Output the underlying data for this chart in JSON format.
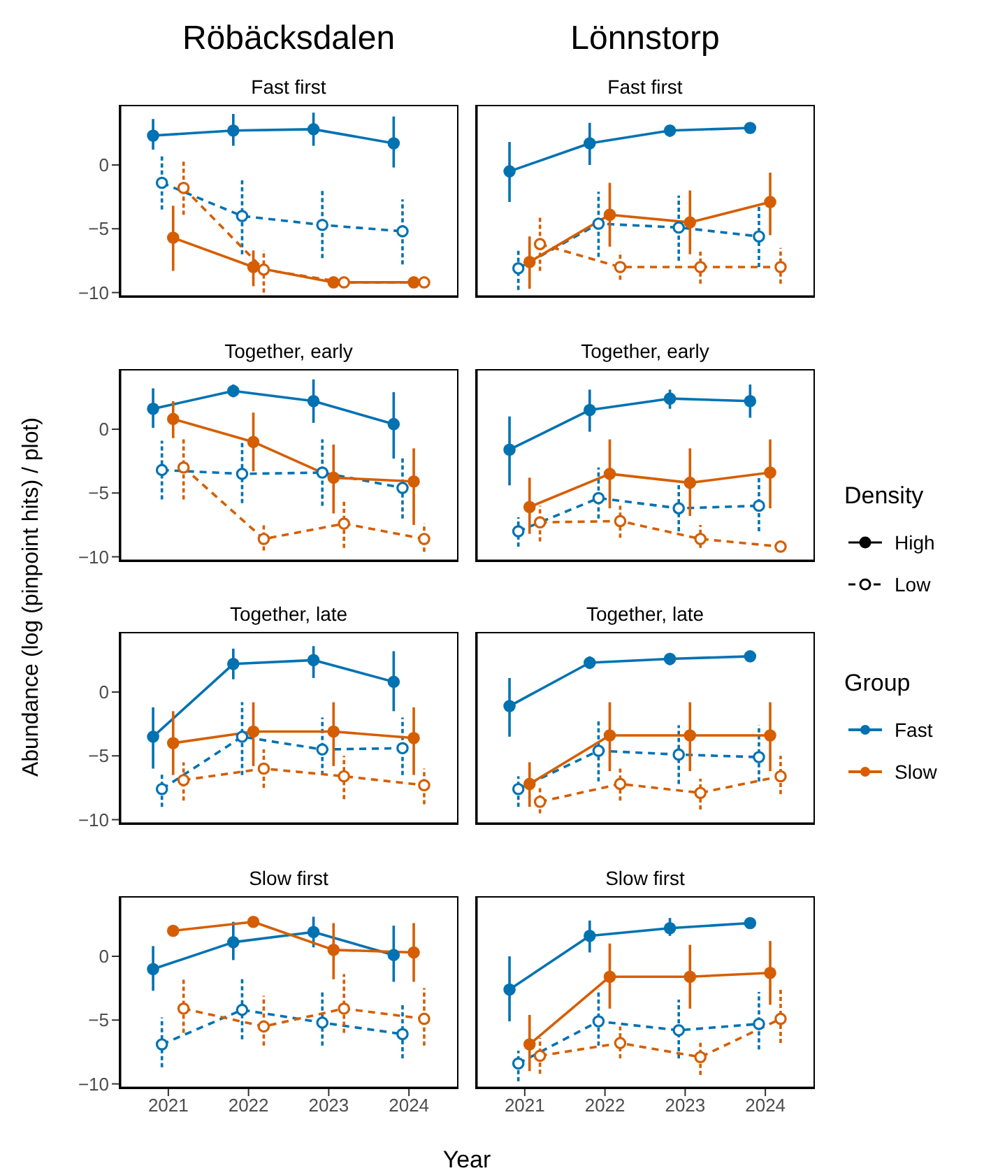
{
  "chart_data": [
    {
      "type": "line",
      "title": "Röbäcksdalen",
      "subtitle": "Fast first",
      "ylabel": "Abundance (log (pinpoint hits) / plot)",
      "legend": "right",
      "legend_title": "Group",
      "xlim": [
        2020.4,
        2024.6
      ],
      "ylim": [
        -10.3,
        4.6
      ],
      "yticks": [
        {
          "value": -10,
          "label": "−10"
        },
        {
          "value": -5,
          "label": "−5"
        },
        {
          "value": 0,
          "label": "0"
        }
      ],
      "tick_labels": "y",
      "marker": "circle",
      "series": [
        {
          "name": "Fast",
          "color": "#0072b2",
          "line_style": "solid",
          "x": [
            2020.81,
            2021.81,
            2022.81,
            2023.81
          ],
          "values": [
            2.3,
            2.7,
            2.8,
            1.7
          ],
          "errors": [
            [
              1.2,
              3.6
            ],
            [
              1.5,
              4.0
            ],
            [
              1.5,
              4.1
            ],
            [
              -0.2,
              3.8
            ]
          ]
        },
        {
          "color": "#0072b2",
          "line_style": "dashed",
          "x": [
            2020.92,
            2021.92,
            2022.92,
            2023.92
          ],
          "values": [
            -1.4,
            -4.0,
            -4.7,
            -5.2
          ],
          "errors": [
            [
              -3.5,
              0.8
            ],
            [
              -7.0,
              -1.2
            ],
            [
              -7.3,
              -2.0
            ],
            [
              -7.8,
              -2.7
            ]
          ]
        },
        {
          "name": "Slow",
          "color": "#d55e00",
          "line_style": "solid",
          "x": [
            2021.06,
            2022.06,
            2023.06,
            2024.06
          ],
          "values": [
            -5.7,
            -8.0,
            -9.2,
            -9.2
          ],
          "errors": [
            [
              -8.3,
              -3.2
            ],
            [
              -9.5,
              -6.7
            ],
            null,
            null
          ]
        },
        {
          "color": "#d55e00",
          "line_style": "dashed",
          "x": [
            2021.19,
            2022.19,
            2023.19,
            2024.19
          ],
          "values": [
            -1.8,
            -8.2,
            -9.2,
            -9.2
          ],
          "errors": [
            [
              -3.9,
              0.4
            ],
            [
              -10.0,
              -6.7
            ],
            null,
            null
          ]
        }
      ]
    },
    {
      "type": "line",
      "title": "Lönnstorp",
      "subtitle": "Fast first",
      "xlim": [
        2020.4,
        2024.6
      ],
      "ylim": [
        -10.3,
        4.6
      ],
      "tick_labels": false,
      "marker": "circle",
      "series": [
        {
          "color": "#0072b2",
          "line_style": "solid",
          "x": [
            2020.81,
            2021.81,
            2022.81,
            2023.81
          ],
          "values": [
            -0.5,
            1.7,
            2.7,
            2.9
          ],
          "errors": [
            [
              -2.9,
              1.8
            ],
            [
              0,
              3.3
            ],
            [
              2.2,
              3.1
            ],
            [
              2.5,
              3.2
            ]
          ]
        },
        {
          "color": "#0072b2",
          "line_style": "dashed",
          "x": [
            2020.92,
            2021.92,
            2022.92,
            2023.92
          ],
          "values": [
            -8.1,
            -4.6,
            -4.9,
            -5.6
          ],
          "errors": [
            [
              -9.8,
              -6.5
            ],
            [
              -7.2,
              -2.1
            ],
            [
              -7.5,
              -2.4
            ],
            [
              -8.0,
              -3.1
            ]
          ]
        },
        {
          "color": "#d55e00",
          "line_style": "solid",
          "x": [
            2021.06,
            2022.06,
            2023.06,
            2024.06
          ],
          "values": [
            -7.6,
            -3.9,
            -4.5,
            -2.9
          ],
          "errors": [
            [
              -9.7,
              -5.6
            ],
            [
              -6.4,
              -1.4
            ],
            [
              -7.0,
              -2.0
            ],
            [
              -5.5,
              -0.6
            ]
          ]
        },
        {
          "color": "#d55e00",
          "line_style": "dashed",
          "x": [
            2021.19,
            2022.19,
            2023.19,
            2024.19
          ],
          "values": [
            -6.2,
            -8.0,
            -8.0,
            -8.0
          ],
          "errors": [
            [
              -8.3,
              -4.0
            ],
            [
              -9.0,
              -6.8
            ],
            [
              -9.3,
              -6.8
            ],
            [
              -9.3,
              -6.5
            ]
          ]
        }
      ]
    },
    {
      "type": "line",
      "subtitle": "Together, early",
      "xlim": [
        2020.4,
        2024.6
      ],
      "ylim": [
        -10.3,
        4.6
      ],
      "yticks": [
        {
          "value": -10,
          "label": "−10"
        },
        {
          "value": -5,
          "label": "−5"
        },
        {
          "value": 0,
          "label": "0"
        }
      ],
      "tick_labels": "y",
      "marker": "circle",
      "series": [
        {
          "color": "#0072b2",
          "line_style": "solid",
          "x": [
            2020.81,
            2021.81,
            2022.81,
            2023.81
          ],
          "values": [
            1.6,
            3.0,
            2.2,
            0.4
          ],
          "errors": [
            [
              0.1,
              3.2
            ],
            [
              2.5,
              3.5
            ],
            [
              0.5,
              3.9
            ],
            [
              -2.3,
              2.9
            ]
          ]
        },
        {
          "color": "#0072b2",
          "line_style": "dashed",
          "x": [
            2020.92,
            2021.92,
            2022.92,
            2023.92
          ],
          "values": [
            -3.2,
            -3.5,
            -3.4,
            -4.6
          ],
          "errors": [
            [
              -5.5,
              -0.9
            ],
            [
              -5.8,
              -0.9
            ],
            [
              -6.0,
              -0.8
            ],
            [
              -7.0,
              -2.2
            ]
          ]
        },
        {
          "color": "#d55e00",
          "line_style": "solid",
          "x": [
            2021.06,
            2022.06,
            2023.06,
            2024.06
          ],
          "values": [
            0.8,
            -1.0,
            -3.8,
            -4.1
          ],
          "errors": [
            [
              -0.7,
              2.2
            ],
            [
              -3.3,
              1.3
            ],
            [
              -6.6,
              -1.2
            ],
            [
              -7.5,
              -1.5
            ]
          ]
        },
        {
          "color": "#d55e00",
          "line_style": "dashed",
          "x": [
            2021.19,
            2022.19,
            2023.19,
            2024.19
          ],
          "values": [
            -3.0,
            -8.6,
            -7.4,
            -8.6
          ],
          "errors": [
            [
              -5.5,
              -0.6
            ],
            [
              -9.5,
              -7.5
            ],
            [
              -9.3,
              -5.6
            ],
            [
              -9.6,
              -7.4
            ]
          ]
        }
      ]
    },
    {
      "type": "line",
      "subtitle": "Together, early",
      "annotations": [
        "Density",
        "High",
        "Low"
      ],
      "xlim": [
        2020.4,
        2024.6
      ],
      "ylim": [
        -10.3,
        4.6
      ],
      "tick_labels": false,
      "marker": "circle",
      "series": [
        {
          "color": "#0072b2",
          "line_style": "solid",
          "x": [
            2020.81,
            2021.81,
            2022.81,
            2023.81
          ],
          "values": [
            -1.6,
            1.5,
            2.4,
            2.2
          ],
          "errors": [
            [
              -4.4,
              1.0
            ],
            [
              -0.2,
              3.1
            ],
            [
              1.6,
              3.1
            ],
            [
              0.9,
              3.5
            ]
          ]
        },
        {
          "color": "#0072b2",
          "line_style": "dashed",
          "x": [
            2020.92,
            2021.92,
            2022.92,
            2023.92
          ],
          "values": [
            -8.0,
            -5.4,
            -6.2,
            -6.0
          ],
          "errors": [
            [
              -9.2,
              -6.9
            ],
            [
              -7.0,
              -3.0
            ],
            [
              -8.0,
              -4.0
            ],
            [
              -8.0,
              -3.8
            ]
          ]
        },
        {
          "color": "#d55e00",
          "line_style": "solid",
          "x": [
            2021.06,
            2022.06,
            2023.06,
            2024.06
          ],
          "values": [
            -6.1,
            -3.5,
            -4.2,
            -3.4
          ],
          "errors": [
            [
              -8.2,
              -3.8
            ],
            [
              -6.2,
              -0.8
            ],
            [
              -6.8,
              -1.5
            ],
            [
              -6.2,
              -0.8
            ]
          ]
        },
        {
          "color": "#d55e00",
          "line_style": "dashed",
          "x": [
            2021.19,
            2022.19,
            2023.19,
            2024.19
          ],
          "values": [
            -7.3,
            -7.2,
            -8.6,
            -9.2
          ],
          "errors": [
            [
              -8.8,
              -6.0
            ],
            [
              -8.5,
              -6.0
            ],
            [
              -9.3,
              -7.5
            ],
            null
          ]
        }
      ]
    },
    {
      "type": "line",
      "subtitle": "Together, late",
      "xlim": [
        2020.4,
        2024.6
      ],
      "ylim": [
        -10.3,
        4.6
      ],
      "yticks": [
        {
          "value": -10,
          "label": "−10"
        },
        {
          "value": -5,
          "label": "−5"
        },
        {
          "value": 0,
          "label": "0"
        }
      ],
      "tick_labels": "y",
      "marker": "circle",
      "series": [
        {
          "color": "#0072b2",
          "line_style": "solid",
          "x": [
            2020.81,
            2021.81,
            2022.81,
            2023.81
          ],
          "values": [
            -3.5,
            2.2,
            2.5,
            0.8
          ],
          "errors": [
            [
              -6.0,
              -1.2
            ],
            [
              1.0,
              3.4
            ],
            [
              1.1,
              3.6
            ],
            [
              -1.5,
              3.2
            ]
          ]
        },
        {
          "color": "#0072b2",
          "line_style": "dashed",
          "x": [
            2020.92,
            2021.92,
            2022.92,
            2023.92
          ],
          "values": [
            -7.6,
            -3.5,
            -4.5,
            -4.4
          ],
          "errors": [
            [
              -9.0,
              -6.4
            ],
            [
              -6.5,
              -0.8
            ],
            [
              -6.5,
              -2.0
            ],
            [
              -6.5,
              -2.0
            ]
          ]
        },
        {
          "color": "#d55e00",
          "line_style": "solid",
          "x": [
            2021.06,
            2022.06,
            2023.06,
            2024.06
          ],
          "values": [
            -4.0,
            -3.1,
            -3.1,
            -3.6
          ],
          "errors": [
            [
              -6.5,
              -1.5
            ],
            [
              -5.8,
              -0.8
            ],
            [
              -5.8,
              -0.8
            ],
            [
              -6.5,
              -1.2
            ]
          ]
        },
        {
          "color": "#d55e00",
          "line_style": "dashed",
          "x": [
            2021.19,
            2022.19,
            2023.19,
            2024.19
          ],
          "values": [
            -6.9,
            -6.0,
            -6.6,
            -7.3
          ],
          "errors": [
            [
              -8.5,
              -5.5
            ],
            [
              -7.5,
              -4.5
            ],
            [
              -8.4,
              -5.0
            ],
            [
              -8.8,
              -6.0
            ]
          ]
        }
      ]
    },
    {
      "type": "line",
      "subtitle": "Together, late",
      "xlim": [
        2020.4,
        2024.6
      ],
      "ylim": [
        -10.3,
        4.6
      ],
      "tick_labels": false,
      "marker": "circle",
      "series": [
        {
          "color": "#0072b2",
          "line_style": "solid",
          "x": [
            2020.81,
            2021.81,
            2022.81,
            2023.81
          ],
          "values": [
            -1.1,
            2.3,
            2.6,
            2.8
          ],
          "errors": [
            [
              -3.5,
              1.1
            ],
            [
              1.8,
              2.8
            ],
            [
              2.1,
              3.0
            ],
            [
              2.6,
              3.0
            ]
          ]
        },
        {
          "color": "#0072b2",
          "line_style": "dashed",
          "x": [
            2020.92,
            2021.92,
            2022.92,
            2023.92
          ],
          "values": [
            -7.6,
            -4.6,
            -4.9,
            -5.1
          ],
          "errors": [
            [
              -9.0,
              -6.6
            ],
            [
              -7.0,
              -2.3
            ],
            [
              -7.2,
              -2.6
            ],
            [
              -7.0,
              -2.6
            ]
          ]
        },
        {
          "color": "#d55e00",
          "line_style": "solid",
          "x": [
            2021.06,
            2022.06,
            2023.06,
            2024.06
          ],
          "values": [
            -7.2,
            -3.4,
            -3.4,
            -3.4
          ],
          "errors": [
            [
              -9.0,
              -5.5
            ],
            [
              -6.2,
              -0.8
            ],
            [
              -6.2,
              -0.8
            ],
            [
              -6.2,
              -0.8
            ]
          ]
        },
        {
          "color": "#d55e00",
          "line_style": "dashed",
          "x": [
            2021.19,
            2022.19,
            2023.19,
            2024.19
          ],
          "values": [
            -8.6,
            -7.2,
            -7.9,
            -6.6
          ],
          "errors": [
            [
              -9.5,
              -7.5
            ],
            [
              -8.5,
              -6.0
            ],
            [
              -9.2,
              -6.8
            ],
            [
              -8.0,
              -5.0
            ]
          ]
        }
      ]
    },
    {
      "type": "line",
      "subtitle": "Slow first",
      "xlabel": "Year",
      "xlim": [
        2020.4,
        2024.6
      ],
      "xticks": [
        2021,
        2022,
        2023,
        2024
      ],
      "ylim": [
        -10.3,
        4.6
      ],
      "yticks": [
        {
          "value": -10,
          "label": "−10"
        },
        {
          "value": -5,
          "label": "−5"
        },
        {
          "value": 0,
          "label": "0"
        }
      ],
      "marker": "circle",
      "series": [
        {
          "color": "#0072b2",
          "line_style": "solid",
          "x": [
            2020.81,
            2021.81,
            2022.81,
            2023.81
          ],
          "values": [
            -1.0,
            1.1,
            1.9,
            0.1
          ],
          "errors": [
            [
              -2.7,
              0.8
            ],
            [
              -0.3,
              2.7
            ],
            [
              0.7,
              3.1
            ],
            [
              -2.0,
              2.4
            ]
          ]
        },
        {
          "color": "#0072b2",
          "line_style": "dashed",
          "x": [
            2020.92,
            2021.92,
            2022.92,
            2023.92
          ],
          "values": [
            -6.9,
            -4.2,
            -5.2,
            -6.1
          ],
          "errors": [
            [
              -8.7,
              -4.8
            ],
            [
              -6.5,
              -1.7
            ],
            [
              -7.0,
              -2.8
            ],
            [
              -8.0,
              -3.8
            ]
          ]
        },
        {
          "color": "#d55e00",
          "line_style": "solid",
          "x": [
            2021.06,
            2022.06,
            2023.06,
            2024.06
          ],
          "values": [
            2.0,
            2.7,
            0.5,
            0.3
          ],
          "errors": [
            [
              1.8,
              2.3
            ],
            [
              2.4,
              2.9
            ],
            [
              -1.8,
              2.6
            ],
            [
              -2.0,
              2.6
            ]
          ]
        },
        {
          "color": "#d55e00",
          "line_style": "dashed",
          "x": [
            2021.19,
            2022.19,
            2023.19,
            2024.19
          ],
          "values": [
            -4.1,
            -5.5,
            -4.1,
            -4.9
          ],
          "errors": [
            [
              -6.0,
              -1.8
            ],
            [
              -7.0,
              -3.1
            ],
            [
              -6.0,
              -1.4
            ],
            [
              -7.0,
              -2.5
            ]
          ]
        }
      ]
    },
    {
      "type": "line",
      "subtitle": "Slow first",
      "xlim": [
        2020.4,
        2024.6
      ],
      "xticks": [
        2021,
        2022,
        2023,
        2024
      ],
      "ylim": [
        -10.3,
        4.6
      ],
      "tick_labels": "x",
      "marker": "circle",
      "series": [
        {
          "color": "#0072b2",
          "line_style": "solid",
          "x": [
            2020.81,
            2021.81,
            2022.81,
            2023.81
          ],
          "values": [
            -2.6,
            1.6,
            2.2,
            2.6
          ],
          "errors": [
            [
              -5.1,
              0
            ],
            [
              0.3,
              2.8
            ],
            [
              1.6,
              3.0
            ],
            [
              2.3,
              2.9
            ]
          ]
        },
        {
          "color": "#0072b2",
          "line_style": "dashed",
          "x": [
            2020.92,
            2021.92,
            2022.92,
            2023.92
          ],
          "values": [
            -8.4,
            -5.1,
            -5.8,
            -5.3
          ],
          "errors": [
            [
              -9.8,
              -7.4
            ],
            [
              -7.0,
              -2.6
            ],
            [
              -8.0,
              -3.4
            ],
            [
              -7.3,
              -2.8
            ]
          ]
        },
        {
          "color": "#d55e00",
          "line_style": "solid",
          "x": [
            2021.06,
            2022.06,
            2023.06,
            2024.06
          ],
          "values": [
            -6.9,
            -1.6,
            -1.6,
            -1.3
          ],
          "errors": [
            [
              -9.0,
              -4.6
            ],
            [
              -4.1,
              1.0
            ],
            [
              -4.1,
              0.9
            ],
            [
              -3.8,
              1.2
            ]
          ]
        },
        {
          "color": "#d55e00",
          "line_style": "dashed",
          "x": [
            2021.19,
            2022.19,
            2023.19,
            2024.19
          ],
          "values": [
            -7.8,
            -6.8,
            -7.9,
            -4.9
          ],
          "errors": [
            [
              -9.2,
              -6.4
            ],
            [
              -8.0,
              -5.5
            ],
            [
              -9.3,
              -6.6
            ],
            [
              -6.8,
              -2.5
            ]
          ]
        }
      ]
    }
  ]
}
